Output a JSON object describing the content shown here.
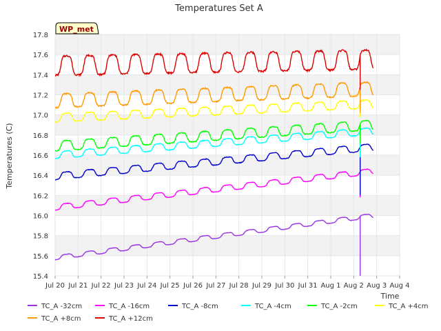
{
  "chart_data": {
    "type": "line",
    "title": "Temperatures Set A",
    "xlabel": "Time",
    "ylabel": "Temperatures (C)",
    "badge": "WP_met",
    "ylim": [
      15.4,
      17.8
    ],
    "yticks": [
      "15.4",
      "15.6",
      "15.8",
      "16.0",
      "16.2",
      "16.4",
      "16.6",
      "16.8",
      "17.0",
      "17.2",
      "17.4",
      "17.6",
      "17.8"
    ],
    "xticks": [
      "Jul 20",
      "Jul 21",
      "Jul 22",
      "Jul 23",
      "Jul 24",
      "Jul 25",
      "Jul 26",
      "Jul 27",
      "Jul 28",
      "Jul 29",
      "Jul 30",
      "Jul 31",
      "Aug 1",
      "Aug 2",
      "Aug 3",
      "Aug 4"
    ],
    "xlim_days": [
      0,
      15
    ],
    "data_end_day": 13.85,
    "gap_day": 13.28,
    "grid": true,
    "legend_position": "bottom",
    "series": [
      {
        "name": "TC_A -32cm",
        "color": "#9933e6",
        "start": 15.58,
        "end": 16.0,
        "amp": 0.03,
        "dip_to": 15.4
      },
      {
        "name": "TC_A -16cm",
        "color": "#ff00ff",
        "start": 16.08,
        "end": 16.44,
        "amp": 0.04,
        "dip_to": 16.18
      },
      {
        "name": "TC_A -8cm",
        "color": "#0000cc",
        "start": 16.39,
        "end": 16.68,
        "amp": 0.05,
        "dip_to": 16.2
      },
      {
        "name": "TC_A -4cm",
        "color": "#00ffff",
        "start": 16.6,
        "end": 16.84,
        "amp": 0.05,
        "dip_to": 16.58
      },
      {
        "name": "TC_A -2cm",
        "color": "#00ff00",
        "start": 16.69,
        "end": 16.9,
        "amp": 0.07,
        "dip_to": 16.72
      },
      {
        "name": "TC_A +4cm",
        "color": "#ffff00",
        "start": 16.97,
        "end": 17.11,
        "amp": 0.06,
        "dip_to": 16.98
      },
      {
        "name": "TC_A +8cm",
        "color": "#ff9900",
        "start": 17.14,
        "end": 17.26,
        "amp": 0.1,
        "dip_to": 17.02
      },
      {
        "name": "TC_A +12cm",
        "color": "#dd0000",
        "start": 17.49,
        "end": 17.55,
        "amp": 0.14,
        "dip_to": 17.25,
        "spike_to": 17.6
      }
    ]
  }
}
